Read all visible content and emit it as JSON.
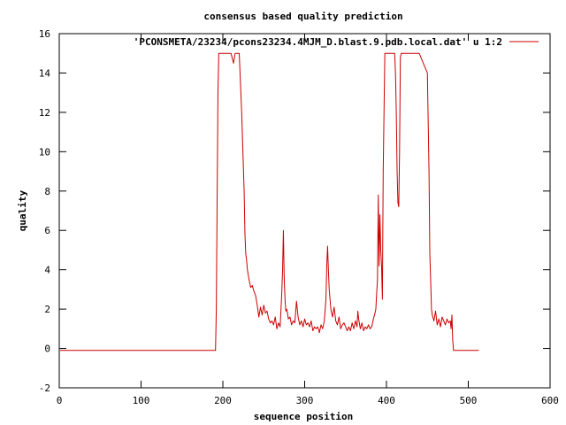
{
  "chart_data": {
    "type": "line",
    "title": "consensus based quality prediction",
    "xlabel": "sequence position",
    "ylabel": "quality",
    "xlim": [
      0,
      600
    ],
    "ylim": [
      -2,
      16
    ],
    "xticks": [
      0,
      100,
      200,
      300,
      400,
      500,
      600
    ],
    "yticks": [
      -2,
      0,
      2,
      4,
      6,
      8,
      10,
      12,
      14,
      16
    ],
    "grid": false,
    "legend_position": "top-right",
    "series": [
      {
        "name": "'PCONSMETA/23234/pcons23234.4MJM_D.blast.9.pdb.local.dat' u 1:2",
        "color": "#cc0000",
        "x": [
          1,
          191,
          192,
          193,
          194,
          195,
          200,
          205,
          210,
          213,
          215,
          217,
          220,
          223,
          226,
          227,
          228,
          229,
          230,
          232,
          234,
          236,
          238,
          240,
          242,
          244,
          246,
          248,
          250,
          252,
          254,
          256,
          258,
          260,
          262,
          264,
          266,
          268,
          270,
          272,
          273,
          274,
          275,
          276,
          277,
          278,
          279,
          280,
          282,
          284,
          286,
          288,
          290,
          292,
          294,
          296,
          298,
          300,
          302,
          304,
          306,
          308,
          310,
          312,
          314,
          316,
          318,
          320,
          322,
          324,
          326,
          327,
          328,
          329,
          330,
          331,
          332,
          334,
          336,
          338,
          340,
          342,
          344,
          346,
          348,
          350,
          352,
          354,
          356,
          358,
          360,
          362,
          364,
          365,
          366,
          368,
          370,
          372,
          374,
          376,
          378,
          380,
          382,
          384,
          386,
          387,
          388,
          389,
          390,
          391,
          392,
          393,
          394,
          395,
          396,
          398,
          400,
          405,
          410,
          411,
          412,
          413,
          414,
          415,
          416,
          417,
          418,
          420,
          425,
          430,
          440,
          450,
          452,
          453,
          454,
          455,
          456,
          458,
          460,
          462,
          464,
          466,
          468,
          470,
          472,
          474,
          476,
          478,
          479,
          480,
          481,
          482,
          490,
          500,
          513
        ],
        "y": [
          -0.1,
          -0.1,
          2,
          7.5,
          13,
          15,
          15,
          15,
          15,
          14.5,
          15,
          15,
          15,
          12,
          8,
          5.8,
          4.8,
          4.5,
          4,
          3.5,
          3.1,
          3.2,
          2.9,
          2.7,
          2.2,
          1.6,
          2.1,
          1.7,
          2.2,
          1.8,
          1.9,
          1.5,
          1.3,
          1.4,
          1.2,
          1.6,
          1.0,
          1.3,
          1.1,
          2.8,
          4.0,
          6.0,
          3.5,
          2.5,
          1.9,
          2.0,
          1.8,
          1.5,
          1.6,
          1.2,
          1.4,
          1.3,
          2.4,
          1.6,
          1.2,
          1.4,
          1.1,
          1.5,
          1.2,
          1.3,
          1.1,
          1.4,
          0.9,
          1.1,
          1.0,
          1.1,
          0.8,
          1.2,
          1.0,
          1.4,
          2.5,
          4.2,
          5.2,
          4.0,
          3.0,
          2.5,
          2.0,
          1.6,
          2.1,
          1.4,
          1.2,
          1.6,
          1.0,
          1.2,
          1.3,
          1.1,
          0.9,
          1.1,
          0.9,
          1.3,
          1.0,
          1.4,
          1.1,
          1.9,
          1.5,
          1.0,
          1.3,
          0.9,
          1.1,
          1.0,
          1.2,
          1.0,
          1.1,
          1.5,
          1.8,
          2.0,
          2.8,
          3.5,
          7.8,
          4.2,
          6.8,
          5.0,
          4.2,
          2.5,
          9,
          15,
          15,
          15,
          15,
          14,
          12,
          9,
          7.4,
          7.2,
          10,
          14.8,
          15,
          15,
          15,
          15,
          15,
          14,
          9,
          4.8,
          3.5,
          2.0,
          1.7,
          1.4,
          1.9,
          1.2,
          1.5,
          1.1,
          1.6,
          1.4,
          1.2,
          1.5,
          1.3,
          1.4,
          1.0,
          1.7,
          0.4,
          -0.1,
          -0.1,
          -0.1,
          -0.1
        ]
      }
    ]
  }
}
